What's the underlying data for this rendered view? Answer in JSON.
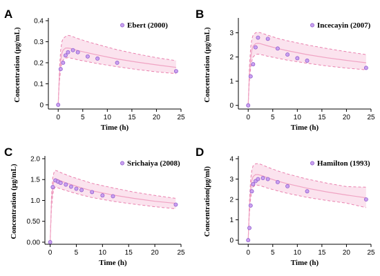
{
  "colors": {
    "band_fill": "#fbe3ee",
    "band_edge": "#e97fad",
    "median_line": "#f0a3c3",
    "point_fill": "#c9a0f0",
    "point_edge": "#8a55c9"
  },
  "chart_data": [
    {
      "type": "line",
      "panel": "A",
      "legend": "Ebert (2000)",
      "xlabel": "Time (h)",
      "ylabel": "Concentration (μg/mL)",
      "xlim": [
        -2,
        25
      ],
      "ylim": [
        -0.02,
        0.4
      ],
      "xticks": [
        0,
        5,
        10,
        15,
        20,
        25
      ],
      "yticks": [
        0.0,
        0.1,
        0.2,
        0.3,
        0.4
      ],
      "ytick_labels": [
        "0",
        "0.1",
        "0.2",
        "0.3",
        "0.4"
      ],
      "legend_position": "top-right",
      "observed": {
        "x": [
          0,
          0.5,
          1,
          1.5,
          2,
          3,
          4,
          6,
          8,
          12,
          24
        ],
        "y": [
          0,
          0.17,
          0.2,
          0.235,
          0.25,
          0.26,
          0.25,
          0.23,
          0.22,
          0.2,
          0.16
        ]
      },
      "median": {
        "x": [
          0,
          0.25,
          0.5,
          0.75,
          1,
          1.5,
          2,
          2.5,
          3,
          4,
          6,
          8,
          12,
          16,
          20,
          24
        ],
        "y": [
          0,
          0.14,
          0.21,
          0.245,
          0.26,
          0.27,
          0.27,
          0.268,
          0.265,
          0.258,
          0.247,
          0.237,
          0.218,
          0.203,
          0.19,
          0.178
        ]
      },
      "upper": {
        "x": [
          0,
          0.25,
          0.5,
          0.75,
          1,
          1.5,
          2,
          2.5,
          3,
          4,
          6,
          8,
          12,
          16,
          20,
          24
        ],
        "y": [
          0,
          0.17,
          0.26,
          0.3,
          0.315,
          0.325,
          0.33,
          0.328,
          0.324,
          0.315,
          0.3,
          0.287,
          0.262,
          0.242,
          0.224,
          0.21
        ]
      },
      "lower": {
        "x": [
          0,
          0.25,
          0.5,
          0.75,
          1,
          1.5,
          2,
          2.5,
          3,
          4,
          6,
          8,
          12,
          16,
          20,
          24
        ],
        "y": [
          0,
          0.11,
          0.17,
          0.2,
          0.213,
          0.222,
          0.224,
          0.222,
          0.22,
          0.214,
          0.205,
          0.196,
          0.181,
          0.168,
          0.157,
          0.148
        ]
      }
    },
    {
      "type": "line",
      "panel": "B",
      "legend": "Incecayin (2007)",
      "xlabel": "Time (h)",
      "ylabel": "Concentration (μg/mL)",
      "xlim": [
        -2,
        25
      ],
      "ylim": [
        -0.15,
        3.5
      ],
      "xticks": [
        0,
        5,
        10,
        15,
        20,
        25
      ],
      "yticks": [
        0,
        1,
        2,
        3
      ],
      "ytick_labels": [
        "0",
        "1",
        "2",
        "3"
      ],
      "legend_position": "top-right",
      "observed": {
        "x": [
          0,
          0.5,
          1,
          1.5,
          2,
          4,
          6,
          8,
          10,
          12,
          24
        ],
        "y": [
          0,
          1.2,
          1.7,
          2.4,
          2.8,
          2.75,
          2.35,
          2.1,
          1.95,
          1.85,
          1.55
        ]
      },
      "median": {
        "x": [
          0,
          0.25,
          0.5,
          0.75,
          1,
          1.5,
          2,
          2.5,
          3,
          4,
          6,
          8,
          12,
          16,
          20,
          24
        ],
        "y": [
          0,
          1.3,
          1.95,
          2.3,
          2.45,
          2.55,
          2.57,
          2.55,
          2.52,
          2.46,
          2.35,
          2.26,
          2.1,
          1.97,
          1.86,
          1.76
        ]
      },
      "upper": {
        "x": [
          0,
          0.25,
          0.5,
          0.75,
          1,
          1.5,
          2,
          2.5,
          3,
          4,
          6,
          8,
          12,
          16,
          20,
          24
        ],
        "y": [
          0,
          1.6,
          2.4,
          2.75,
          2.9,
          3.0,
          3.02,
          3.0,
          2.97,
          2.9,
          2.77,
          2.67,
          2.5,
          2.35,
          2.22,
          2.1
        ]
      },
      "lower": {
        "x": [
          0,
          0.25,
          0.5,
          0.75,
          1,
          1.5,
          2,
          2.5,
          3,
          4,
          6,
          8,
          12,
          16,
          20,
          24
        ],
        "y": [
          0,
          1.0,
          1.55,
          1.85,
          2.0,
          2.1,
          2.12,
          2.1,
          2.08,
          2.03,
          1.95,
          1.87,
          1.74,
          1.63,
          1.54,
          1.47
        ]
      }
    },
    {
      "type": "line",
      "panel": "C",
      "legend": "Srichaiya (2008)",
      "xlabel": "Time (h)",
      "ylabel": "Concentration (μg/mL)",
      "xlim": [
        -1,
        25
      ],
      "ylim": [
        -0.05,
        2.0
      ],
      "xticks": [
        0,
        5,
        10,
        15,
        20,
        25
      ],
      "yticks": [
        0.0,
        0.5,
        1.0,
        1.5,
        2.0
      ],
      "ytick_labels": [
        "0.00",
        "0.50",
        "1.0",
        "1.5",
        "2.0"
      ],
      "legend_position": "top-right",
      "observed": {
        "x": [
          0,
          0.5,
          1,
          1.5,
          2,
          3,
          4,
          5,
          6,
          8,
          10,
          12,
          24
        ],
        "y": [
          0,
          1.32,
          1.48,
          1.45,
          1.42,
          1.38,
          1.33,
          1.28,
          1.25,
          1.2,
          1.12,
          1.1,
          0.9
        ]
      },
      "median": {
        "x": [
          0,
          0.25,
          0.5,
          0.75,
          1,
          1.5,
          2,
          3,
          4,
          6,
          8,
          12,
          16,
          20,
          24
        ],
        "y": [
          0,
          0.95,
          1.35,
          1.48,
          1.52,
          1.5,
          1.47,
          1.42,
          1.38,
          1.3,
          1.23,
          1.13,
          1.05,
          0.98,
          0.93
        ]
      },
      "upper": {
        "x": [
          0,
          0.25,
          0.5,
          0.75,
          1,
          1.5,
          2,
          3,
          4,
          6,
          8,
          12,
          16,
          20,
          24
        ],
        "y": [
          0,
          1.1,
          1.55,
          1.68,
          1.72,
          1.7,
          1.67,
          1.62,
          1.57,
          1.49,
          1.41,
          1.3,
          1.2,
          1.12,
          1.05
        ]
      },
      "lower": {
        "x": [
          0,
          0.25,
          0.5,
          0.75,
          1,
          1.5,
          2,
          3,
          4,
          6,
          8,
          12,
          16,
          20,
          24
        ],
        "y": [
          0,
          0.8,
          1.15,
          1.28,
          1.32,
          1.3,
          1.28,
          1.24,
          1.2,
          1.13,
          1.07,
          0.98,
          0.91,
          0.85,
          0.8
        ]
      }
    },
    {
      "type": "line",
      "panel": "D",
      "legend": "Hamilton (1993)",
      "xlabel": "Time (h)",
      "ylabel": "Concentration(μg/ml)",
      "xlim": [
        -2,
        25
      ],
      "ylim": [
        -0.2,
        4.0
      ],
      "xticks": [
        0,
        5,
        10,
        15,
        20,
        25
      ],
      "yticks": [
        0,
        1,
        2,
        3,
        4
      ],
      "ytick_labels": [
        "0",
        "1",
        "2",
        "3",
        "4"
      ],
      "legend_position": "top-right",
      "observed": {
        "x": [
          0,
          0.25,
          0.5,
          0.75,
          1,
          1.5,
          2,
          3,
          4,
          6,
          8,
          12,
          24
        ],
        "y": [
          0,
          0.6,
          1.7,
          2.4,
          2.75,
          2.9,
          3.0,
          3.05,
          3.0,
          2.85,
          2.65,
          2.4,
          2.0
        ]
      },
      "median": {
        "x": [
          0,
          0.25,
          0.5,
          0.75,
          1,
          1.5,
          2,
          2.5,
          3,
          4,
          6,
          8,
          12,
          16,
          20,
          24
        ],
        "y": [
          0,
          1.6,
          2.5,
          2.95,
          3.12,
          3.22,
          3.22,
          3.19,
          3.15,
          3.06,
          2.9,
          2.77,
          2.55,
          2.37,
          2.22,
          2.08
        ]
      },
      "upper": {
        "x": [
          0,
          0.25,
          0.5,
          0.75,
          1,
          1.5,
          2,
          2.5,
          3,
          4,
          6,
          8,
          12,
          16,
          20,
          24
        ],
        "y": [
          0,
          1.9,
          3.0,
          3.45,
          3.65,
          3.75,
          3.76,
          3.73,
          3.68,
          3.58,
          3.4,
          3.25,
          3.0,
          2.8,
          2.63,
          2.6
        ]
      },
      "lower": {
        "x": [
          0,
          0.25,
          0.5,
          0.75,
          1,
          1.5,
          2,
          2.5,
          3,
          4,
          6,
          8,
          12,
          16,
          20,
          24
        ],
        "y": [
          0,
          1.3,
          2.05,
          2.45,
          2.62,
          2.7,
          2.7,
          2.67,
          2.63,
          2.55,
          2.42,
          2.3,
          2.1,
          1.95,
          1.82,
          1.6
        ]
      }
    }
  ]
}
